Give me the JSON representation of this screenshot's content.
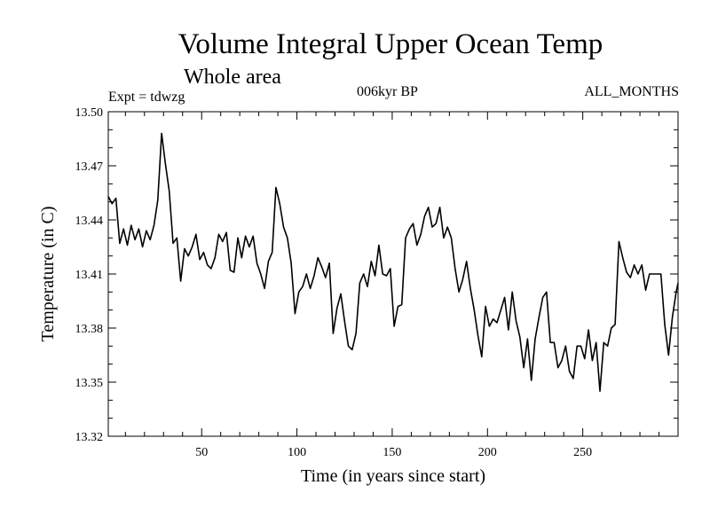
{
  "title": "Volume Integral Upper Ocean Temp",
  "subtitle": "Whole area",
  "experiment": "Expt = tdwzg",
  "period": "006kyr BP",
  "months": "ALL_MONTHS",
  "chart_data": {
    "type": "line",
    "title": "Volume Integral Upper Ocean Temp",
    "xlabel": "Time (in years since start)",
    "ylabel": "Temperature (in C)",
    "xlim": [
      1,
      300
    ],
    "ylim": [
      13.32,
      13.5
    ],
    "xticks": [
      50,
      100,
      150,
      200,
      250
    ],
    "xtick_labels": [
      "50",
      "100",
      "150",
      "200",
      "250"
    ],
    "yticks": [
      13.32,
      13.35,
      13.38,
      13.41,
      13.44,
      13.47,
      13.5
    ],
    "ytick_labels": [
      "13.32",
      "13.35",
      "13.38",
      "13.41",
      "13.44",
      "13.47",
      "13.50"
    ],
    "grid": false,
    "series": [
      {
        "x": [
          1,
          3,
          5,
          7,
          9,
          11,
          13,
          15,
          17,
          19,
          21,
          23,
          25,
          27,
          29,
          31,
          33,
          35,
          37,
          39,
          41,
          43,
          45,
          47,
          49,
          51,
          53,
          55,
          57,
          59,
          61,
          63,
          65,
          67,
          69,
          71,
          73,
          75,
          77,
          79,
          81,
          83,
          85,
          87,
          89,
          91,
          93,
          95,
          97,
          99,
          101,
          103,
          105,
          107,
          109,
          111,
          113,
          115,
          117,
          119,
          121,
          123,
          125,
          127,
          129,
          131,
          133,
          135,
          137,
          139,
          141,
          143,
          145,
          147,
          149,
          151,
          153,
          155,
          157,
          159,
          161,
          163,
          165,
          167,
          169,
          171,
          173,
          175,
          177,
          179,
          181,
          183,
          185,
          187,
          189,
          191,
          193,
          195,
          197,
          199,
          201,
          203,
          205,
          207,
          209,
          211,
          213,
          215,
          217,
          219,
          221,
          223,
          225,
          227,
          229,
          231,
          233,
          235,
          237,
          239,
          241,
          243,
          245,
          247,
          249,
          251,
          253,
          255,
          257,
          259,
          261,
          263,
          265,
          267,
          269,
          271,
          273,
          275,
          277,
          279,
          281,
          283,
          285,
          287,
          289,
          291,
          293,
          295,
          297,
          299,
          300
        ],
        "y": [
          13.453,
          13.449,
          13.452,
          13.427,
          13.435,
          13.426,
          13.437,
          13.429,
          13.435,
          13.425,
          13.434,
          13.429,
          13.437,
          13.451,
          13.488,
          13.471,
          13.456,
          13.427,
          13.43,
          13.406,
          13.424,
          13.42,
          13.425,
          13.432,
          13.418,
          13.422,
          13.415,
          13.413,
          13.419,
          13.432,
          13.428,
          13.433,
          13.412,
          13.411,
          13.43,
          13.419,
          13.431,
          13.425,
          13.431,
          13.416,
          13.41,
          13.402,
          13.417,
          13.422,
          13.458,
          13.449,
          13.436,
          13.43,
          13.416,
          13.388,
          13.4,
          13.403,
          13.41,
          13.402,
          13.409,
          13.419,
          13.414,
          13.408,
          13.416,
          13.377,
          13.391,
          13.399,
          13.384,
          13.37,
          13.368,
          13.377,
          13.405,
          13.41,
          13.403,
          13.417,
          13.409,
          13.426,
          13.41,
          13.409,
          13.413,
          13.381,
          13.392,
          13.393,
          13.43,
          13.435,
          13.438,
          13.426,
          13.432,
          13.442,
          13.447,
          13.436,
          13.438,
          13.447,
          13.43,
          13.436,
          13.43,
          13.413,
          13.4,
          13.407,
          13.417,
          13.402,
          13.39,
          13.376,
          13.364,
          13.392,
          13.381,
          13.385,
          13.383,
          13.39,
          13.397,
          13.379,
          13.4,
          13.384,
          13.375,
          13.358,
          13.374,
          13.351,
          13.374,
          13.386,
          13.397,
          13.4,
          13.372,
          13.372,
          13.358,
          13.362,
          13.37,
          13.356,
          13.352,
          13.37,
          13.37,
          13.363,
          13.379,
          13.362,
          13.372,
          13.345,
          13.372,
          13.37,
          13.38,
          13.382,
          13.428,
          13.419,
          13.411,
          13.408,
          13.415,
          13.41,
          13.415,
          13.401,
          13.41,
          13.41,
          13.41,
          13.41,
          13.382,
          13.365,
          13.386,
          13.4,
          13.405
        ]
      }
    ]
  }
}
